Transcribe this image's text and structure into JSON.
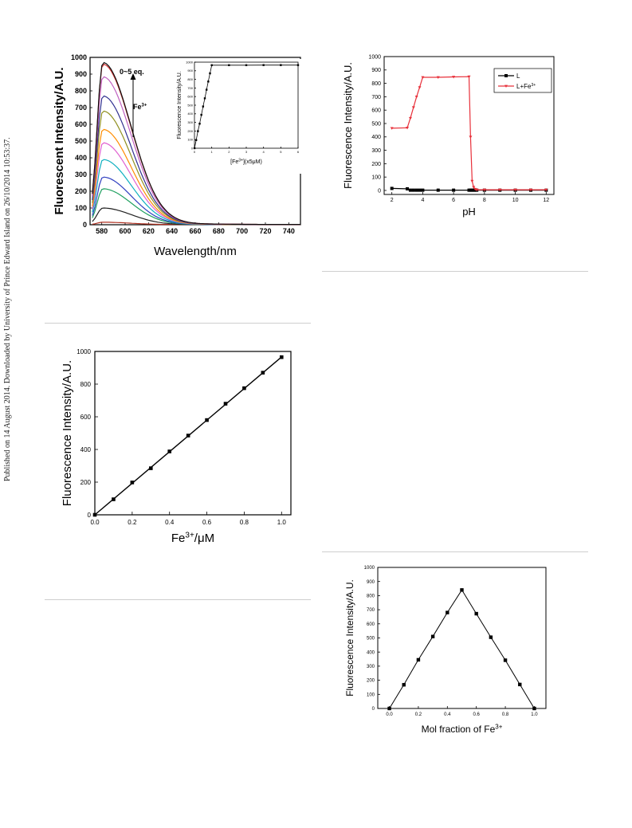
{
  "sidebar_note": "Published on 14 August 2014. Downloaded by University of Prince Edward Island on 26/10/2014 10:53:37.",
  "chart_data": [
    {
      "type": "line",
      "id": "emission",
      "xlabel": "Wavelength/nm",
      "ylabel": "Fluorescent Intensity/A.U.",
      "xlim": [
        570,
        750
      ],
      "ylim": [
        0,
        1000
      ],
      "xticks": [
        580,
        600,
        620,
        640,
        660,
        680,
        700,
        720,
        740
      ],
      "yticks": [
        0,
        100,
        200,
        300,
        400,
        500,
        600,
        700,
        800,
        900,
        1000
      ],
      "peak_wavelength": 581,
      "annotations": {
        "range": "0~5 eq.",
        "ion": "Fe",
        "ion_sup": "3+"
      },
      "series": [
        {
          "color": "#b03020",
          "peak": 15
        },
        {
          "color": "#202020",
          "peak": 100
        },
        {
          "color": "#20a060",
          "peak": 215
        },
        {
          "color": "#3040c0",
          "peak": 285
        },
        {
          "color": "#10b0c0",
          "peak": 390
        },
        {
          "color": "#e060d0",
          "peak": 490
        },
        {
          "color": "#ff8c00",
          "peak": 570
        },
        {
          "color": "#909020",
          "peak": 680
        },
        {
          "color": "#303090",
          "peak": 770
        },
        {
          "color": "#c060c0",
          "peak": 885
        },
        {
          "color": "#d03030",
          "peak": 960
        },
        {
          "color": "#101010",
          "peak": 970
        }
      ],
      "inset": {
        "type": "line",
        "xlabel": "[Fe",
        "xlabel_sup": "3+",
        "xlabel_tail": "](x5μM)",
        "ylabel": "Fluorescence Intensity/A.U.",
        "xlim": [
          0,
          6
        ],
        "ylim": [
          0,
          1000
        ],
        "xticks": [
          0,
          1,
          2,
          3,
          4,
          5,
          6
        ],
        "yticks": [
          0,
          100,
          200,
          300,
          400,
          500,
          600,
          700,
          800,
          900,
          1000
        ],
        "x": [
          0,
          0.1,
          0.2,
          0.3,
          0.4,
          0.5,
          0.6,
          0.7,
          0.8,
          0.9,
          1.0,
          2,
          3,
          4,
          5,
          6
        ],
        "y": [
          0,
          95,
          198,
          285,
          388,
          485,
          580,
          680,
          775,
          870,
          965,
          965,
          965,
          966,
          966,
          966
        ]
      }
    },
    {
      "type": "line",
      "id": "ph",
      "xlabel": "pH",
      "ylabel": "Fluorescence Intensity/A.U.",
      "xlim": [
        1.5,
        12.5
      ],
      "ylim": [
        -30,
        1000
      ],
      "xticks": [
        2,
        4,
        6,
        8,
        10,
        12
      ],
      "yticks": [
        0,
        100,
        200,
        300,
        400,
        500,
        600,
        700,
        800,
        900,
        1000
      ],
      "series": [
        {
          "name": "L",
          "color": "#000000",
          "x": [
            2,
            3,
            3.2,
            3.4,
            3.6,
            3.8,
            4,
            5,
            6,
            7,
            7.1,
            7.2,
            7.3,
            7.4,
            7.5,
            8,
            9,
            10,
            11,
            12
          ],
          "y": [
            15,
            12,
            2,
            2,
            2,
            2,
            2,
            2,
            2,
            2,
            2,
            2,
            2,
            2,
            2,
            2,
            2,
            2,
            2,
            2
          ]
        },
        {
          "name": "L+Fe",
          "name_sup": "3+",
          "color": "#e8303a",
          "x": [
            2,
            3,
            3.2,
            3.4,
            3.6,
            3.8,
            4,
            5,
            6,
            7,
            7.1,
            7.2,
            7.3,
            7.4,
            7.5,
            8,
            9,
            10,
            11,
            12
          ],
          "y": [
            465,
            468,
            540,
            620,
            700,
            770,
            845,
            845,
            848,
            850,
            400,
            70,
            25,
            10,
            5,
            5,
            5,
            5,
            5,
            5
          ]
        }
      ]
    },
    {
      "type": "scatter",
      "id": "linear",
      "xlabel": "Fe",
      "xlabel_sup": "3+",
      "xlabel_tail": "/μM",
      "ylabel": "Fluorescence Intensity/A.U.",
      "xlim": [
        0,
        1.05
      ],
      "ylim": [
        0,
        1000
      ],
      "xticks": [
        0.0,
        0.2,
        0.4,
        0.6,
        0.8,
        1.0
      ],
      "yticks": [
        0,
        200,
        400,
        600,
        800,
        1000
      ],
      "x": [
        0,
        0.1,
        0.2,
        0.3,
        0.4,
        0.5,
        0.6,
        0.7,
        0.8,
        0.9,
        1.0
      ],
      "y": [
        0,
        95,
        198,
        285,
        388,
        485,
        580,
        680,
        775,
        870,
        965
      ]
    },
    {
      "type": "line",
      "id": "job",
      "xlabel": "Mol fraction of Fe",
      "xlabel_sup": "3+",
      "ylabel": "Fluorescence Intensity/A.U.",
      "xlim": [
        -0.08,
        1.08
      ],
      "ylim": [
        0,
        1000
      ],
      "xticks": [
        0.0,
        0.2,
        0.4,
        0.6,
        0.8,
        1.0
      ],
      "yticks": [
        0,
        100,
        200,
        300,
        400,
        500,
        600,
        700,
        800,
        900,
        1000
      ],
      "x": [
        0,
        0.1,
        0.2,
        0.3,
        0.4,
        0.5,
        0.6,
        0.7,
        0.8,
        0.9,
        1.0
      ],
      "y": [
        0,
        168,
        345,
        510,
        680,
        840,
        672,
        505,
        342,
        170,
        0
      ]
    }
  ]
}
